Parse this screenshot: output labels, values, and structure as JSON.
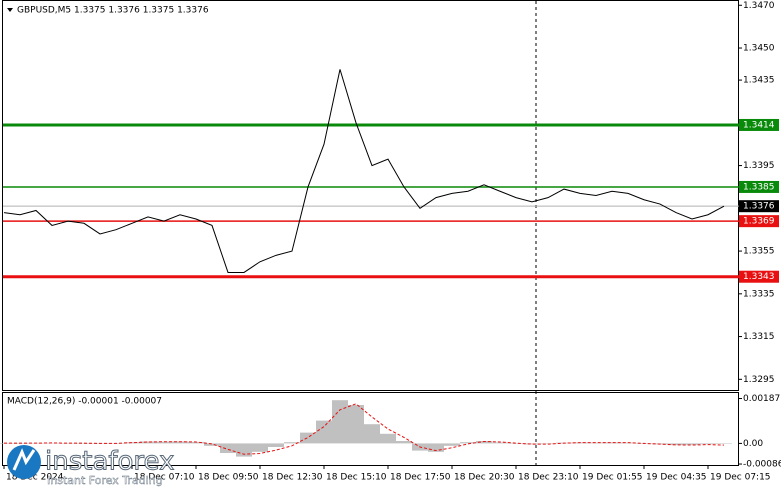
{
  "chart_data": [
    {
      "type": "line",
      "title": "GBPUSD,M5  1.3375 1.3376 1.3375 1.3376",
      "categories": [
        "18 Dec 2024",
        null,
        null,
        null,
        null,
        null,
        null,
        null,
        "18 Dec 07:10",
        null,
        null,
        null,
        "18 Dec 09:50",
        null,
        null,
        null,
        "18 Dec 12:30",
        null,
        null,
        null,
        "18 Dec 15:10",
        null,
        null,
        null,
        "18 Dec 17:50",
        null,
        null,
        null,
        "18 Dec 20:30",
        null,
        null,
        null,
        "18 Dec 23:10",
        null,
        null,
        null,
        "19 Dec 01:55",
        null,
        null,
        null,
        "19 Dec 04:35",
        null,
        null,
        null,
        "19 Dec 07:15",
        null
      ],
      "series": [
        {
          "color": "#000000",
          "values": [
            1.3373,
            1.3372,
            1.3374,
            1.3367,
            1.3369,
            1.3368,
            1.3363,
            1.3365,
            1.3368,
            1.3371,
            1.3369,
            1.3372,
            1.337,
            1.3367,
            1.3345,
            1.3345,
            1.335,
            1.3353,
            1.3355,
            1.3385,
            1.3405,
            1.344,
            1.3415,
            1.3395,
            1.3398,
            1.3385,
            1.3375,
            1.338,
            1.3382,
            1.3383,
            1.3386,
            1.3383,
            1.338,
            1.3378,
            1.338,
            1.3384,
            1.3382,
            1.3381,
            1.3383,
            1.3382,
            1.3379,
            1.3377,
            1.3373,
            1.337,
            1.3372,
            1.3376
          ]
        }
      ],
      "ylim": [
        1.329,
        1.3472
      ],
      "yticks": [
        {
          "value": 1.347,
          "label": "1.3470"
        },
        {
          "value": 1.345,
          "label": "1.3450"
        },
        1.3435,
        1.3395,
        1.3355,
        1.3335,
        1.3315,
        1.3295
      ],
      "levels": [
        {
          "value": 1.3414,
          "color": "#0a8a0a",
          "thick": true
        },
        {
          "value": 1.3385,
          "color": "#0a8a0a",
          "thick": false
        },
        {
          "value": 1.3369,
          "color": "#e81010",
          "thick": false
        },
        {
          "value": 1.3343,
          "color": "#e81010",
          "thick": true
        }
      ],
      "current_price": 1.3376
    },
    {
      "type": "bar",
      "title": "MACD(12,26,9) -0.00001 -0.00007",
      "series": [
        {
          "type": "bar",
          "color": "#c0c0c0",
          "values": [
            1e-05,
            0,
            2e-05,
            2e-05,
            1e-05,
            0,
            -1e-05,
            1e-05,
            5e-05,
            8e-05,
            7e-05,
            8e-05,
            6e-05,
            -0.0001,
            -0.0004,
            -0.00055,
            -0.00035,
            -0.00015,
            5e-05,
            0.00045,
            0.00095,
            0.0018,
            0.0016,
            0.0008,
            0.0004,
            0.0001,
            -0.0003,
            -0.00035,
            -0.0001,
            5e-05,
            0.0001,
            4e-05,
            0,
            -4e-05,
            -2e-05,
            3e-05,
            4e-05,
            3e-05,
            4e-05,
            3e-05,
            -1e-05,
            -4e-05,
            -7e-05,
            -6e-05,
            -3e-05,
            -1e-05
          ]
        },
        {
          "type": "line",
          "color": "#e81010",
          "dashed": true,
          "values": [
            1e-05,
            1e-05,
            1e-05,
            2e-05,
            1e-05,
            1e-05,
            0,
            0,
            3e-05,
            6e-05,
            7e-05,
            7e-05,
            6e-05,
            -2e-05,
            -0.00025,
            -0.00045,
            -0.00042,
            -0.00028,
            -0.0001,
            0.00025,
            0.0007,
            0.0014,
            0.00165,
            0.0011,
            0.0006,
            0.00025,
            -0.00015,
            -0.0003,
            -0.00018,
            -2e-05,
            8e-05,
            6e-05,
            1e-05,
            -3e-05,
            -3e-05,
            1e-05,
            3e-05,
            3e-05,
            3e-05,
            3e-05,
            0,
            -3e-05,
            -6e-05,
            -7e-05,
            -5e-05,
            -7e-05
          ]
        }
      ],
      "ylim": [
        -0.0009,
        0.0021
      ],
      "yticks": [
        0.00187,
        {
          "value": 0,
          "label": "0.00"
        },
        -0.00086
      ]
    }
  ],
  "watermark": {
    "brand": "instaforex",
    "tagline": "Instant Forex Trading"
  }
}
